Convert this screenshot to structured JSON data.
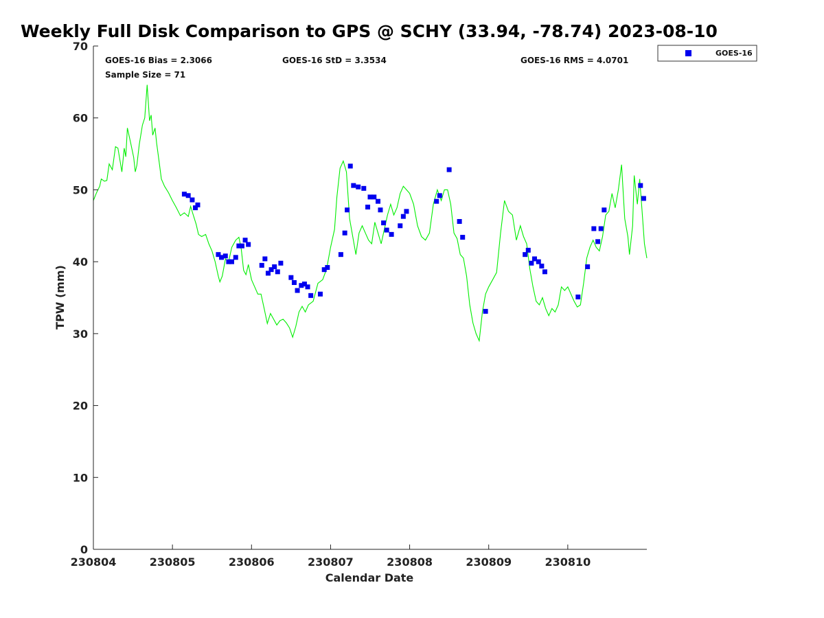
{
  "chart_data": {
    "type": "scatter",
    "title": "Weekly Full Disk Comparison to GPS @ SCHY (33.94, -78.74) 2023-08-10",
    "xlabel": "Calendar Date",
    "ylabel": "TPW (mm)",
    "xlim": [
      230804.0,
      230811.0
    ],
    "ylim": [
      0,
      70
    ],
    "x_ticks": [
      {
        "value": 230804,
        "label": "230804"
      },
      {
        "value": 230805,
        "label": "230805"
      },
      {
        "value": 230806,
        "label": "230806"
      },
      {
        "value": 230807,
        "label": "230807"
      },
      {
        "value": 230808,
        "label": "230808"
      },
      {
        "value": 230809,
        "label": "230809"
      },
      {
        "value": 230810,
        "label": "230810"
      }
    ],
    "y_ticks": [
      {
        "value": 0,
        "label": "0"
      },
      {
        "value": 10,
        "label": "10"
      },
      {
        "value": 20,
        "label": "20"
      },
      {
        "value": 30,
        "label": "30"
      },
      {
        "value": 40,
        "label": "40"
      },
      {
        "value": 50,
        "label": "50"
      },
      {
        "value": 60,
        "label": "60"
      },
      {
        "value": 70,
        "label": "70"
      }
    ],
    "grid": false,
    "legend_position": "outside-top-right",
    "stats": {
      "bias": "GOES-16 Bias = 2.3066",
      "std": "GOES-16 StD = 3.3534",
      "rms": "GOES-16 RMS = 4.0701",
      "sample": "Sample Size = 71"
    },
    "series": [
      {
        "name": "GOES-16",
        "kind": "scatter",
        "color": "#0000ee",
        "marker": "square",
        "points": [
          [
            230805.15,
            49.4
          ],
          [
            230805.2,
            49.2
          ],
          [
            230805.25,
            48.6
          ],
          [
            230805.29,
            47.5
          ],
          [
            230805.32,
            47.9
          ],
          [
            230805.58,
            41.0
          ],
          [
            230805.62,
            40.6
          ],
          [
            230805.67,
            40.8
          ],
          [
            230805.71,
            40.0
          ],
          [
            230805.75,
            40.0
          ],
          [
            230805.8,
            40.6
          ],
          [
            230805.84,
            42.2
          ],
          [
            230805.88,
            42.2
          ],
          [
            230805.92,
            43.0
          ],
          [
            230805.96,
            42.4
          ],
          [
            230806.13,
            39.5
          ],
          [
            230806.17,
            40.4
          ],
          [
            230806.21,
            38.4
          ],
          [
            230806.25,
            38.9
          ],
          [
            230806.29,
            39.3
          ],
          [
            230806.33,
            38.6
          ],
          [
            230806.37,
            39.8
          ],
          [
            230806.5,
            37.8
          ],
          [
            230806.54,
            37.1
          ],
          [
            230806.58,
            36.0
          ],
          [
            230806.63,
            36.7
          ],
          [
            230806.67,
            36.9
          ],
          [
            230806.71,
            36.5
          ],
          [
            230806.75,
            35.3
          ],
          [
            230806.87,
            35.5
          ],
          [
            230806.92,
            38.9
          ],
          [
            230806.96,
            39.2
          ],
          [
            230807.13,
            41.0
          ],
          [
            230807.18,
            44.0
          ],
          [
            230807.21,
            47.2
          ],
          [
            230807.25,
            53.3
          ],
          [
            230807.29,
            50.6
          ],
          [
            230807.35,
            50.4
          ],
          [
            230807.42,
            50.2
          ],
          [
            230807.47,
            47.6
          ],
          [
            230807.5,
            49.0
          ],
          [
            230807.55,
            49.0
          ],
          [
            230807.6,
            48.4
          ],
          [
            230807.63,
            47.2
          ],
          [
            230807.67,
            45.4
          ],
          [
            230807.71,
            44.4
          ],
          [
            230807.77,
            43.8
          ],
          [
            230807.88,
            45.0
          ],
          [
            230807.92,
            46.3
          ],
          [
            230807.96,
            47.0
          ],
          [
            230808.34,
            48.4
          ],
          [
            230808.38,
            49.2
          ],
          [
            230808.5,
            52.8
          ],
          [
            230808.63,
            45.6
          ],
          [
            230808.67,
            43.4
          ],
          [
            230808.96,
            33.1
          ],
          [
            230809.46,
            41.0
          ],
          [
            230809.5,
            41.6
          ],
          [
            230809.54,
            39.8
          ],
          [
            230809.58,
            40.4
          ],
          [
            230809.63,
            40.0
          ],
          [
            230809.67,
            39.4
          ],
          [
            230809.71,
            38.6
          ],
          [
            230810.13,
            35.1
          ],
          [
            230810.25,
            39.3
          ],
          [
            230810.33,
            44.6
          ],
          [
            230810.38,
            42.8
          ],
          [
            230810.42,
            44.6
          ],
          [
            230810.46,
            47.2
          ],
          [
            230810.92,
            50.6
          ],
          [
            230810.96,
            48.8
          ]
        ]
      },
      {
        "name": "",
        "kind": "line",
        "color": "#00ee00",
        "points": [
          [
            230804.0,
            48.5
          ],
          [
            230804.04,
            49.6
          ],
          [
            230804.08,
            50.5
          ],
          [
            230804.1,
            51.5
          ],
          [
            230804.14,
            51.2
          ],
          [
            230804.17,
            51.3
          ],
          [
            230804.2,
            53.6
          ],
          [
            230804.24,
            52.8
          ],
          [
            230804.28,
            56.0
          ],
          [
            230804.31,
            55.8
          ],
          [
            230804.33,
            54.5
          ],
          [
            230804.36,
            52.5
          ],
          [
            230804.39,
            55.8
          ],
          [
            230804.41,
            54.6
          ],
          [
            230804.43,
            58.6
          ],
          [
            230804.47,
            56.6
          ],
          [
            230804.51,
            54.5
          ],
          [
            230804.53,
            52.5
          ],
          [
            230804.55,
            53.4
          ],
          [
            230804.58,
            56.3
          ],
          [
            230804.62,
            59.0
          ],
          [
            230804.65,
            60.0
          ],
          [
            230804.68,
            64.6
          ],
          [
            230804.71,
            59.6
          ],
          [
            230804.73,
            60.4
          ],
          [
            230804.75,
            57.6
          ],
          [
            230804.78,
            58.6
          ],
          [
            230804.8,
            56.5
          ],
          [
            230804.83,
            54.0
          ],
          [
            230804.86,
            51.5
          ],
          [
            230804.9,
            50.5
          ],
          [
            230804.95,
            49.6
          ],
          [
            230805.0,
            48.5
          ],
          [
            230805.05,
            47.5
          ],
          [
            230805.1,
            46.4
          ],
          [
            230805.15,
            46.8
          ],
          [
            230805.2,
            46.3
          ],
          [
            230805.23,
            47.7
          ],
          [
            230805.26,
            46.6
          ],
          [
            230805.3,
            45.2
          ],
          [
            230805.33,
            43.8
          ],
          [
            230805.37,
            43.5
          ],
          [
            230805.42,
            43.8
          ],
          [
            230805.46,
            42.5
          ],
          [
            230805.5,
            41.5
          ],
          [
            230805.54,
            40.0
          ],
          [
            230805.58,
            38.0
          ],
          [
            230805.6,
            37.2
          ],
          [
            230805.63,
            38.0
          ],
          [
            230805.67,
            40.4
          ],
          [
            230805.71,
            40.0
          ],
          [
            230805.75,
            42.0
          ],
          [
            230805.8,
            43.0
          ],
          [
            230805.84,
            43.4
          ],
          [
            230805.87,
            41.8
          ],
          [
            230805.9,
            38.8
          ],
          [
            230805.93,
            38.2
          ],
          [
            230805.96,
            39.6
          ],
          [
            230806.0,
            37.5
          ],
          [
            230806.04,
            36.5
          ],
          [
            230806.08,
            35.5
          ],
          [
            230806.12,
            35.5
          ],
          [
            230806.16,
            33.5
          ],
          [
            230806.2,
            31.4
          ],
          [
            230806.24,
            32.8
          ],
          [
            230806.28,
            32.0
          ],
          [
            230806.32,
            31.2
          ],
          [
            230806.36,
            31.8
          ],
          [
            230806.4,
            32.0
          ],
          [
            230806.44,
            31.5
          ],
          [
            230806.48,
            30.8
          ],
          [
            230806.52,
            29.5
          ],
          [
            230806.56,
            31.0
          ],
          [
            230806.6,
            33.0
          ],
          [
            230806.64,
            33.8
          ],
          [
            230806.68,
            33.0
          ],
          [
            230806.72,
            34.0
          ],
          [
            230806.78,
            34.5
          ],
          [
            230806.84,
            37.0
          ],
          [
            230806.9,
            37.5
          ],
          [
            230806.95,
            39.0
          ],
          [
            230807.0,
            42.0
          ],
          [
            230807.05,
            44.5
          ],
          [
            230807.08,
            49.0
          ],
          [
            230807.12,
            53.0
          ],
          [
            230807.16,
            54.0
          ],
          [
            230807.2,
            52.5
          ],
          [
            230807.24,
            46.0
          ],
          [
            230807.28,
            43.5
          ],
          [
            230807.32,
            41.0
          ],
          [
            230807.36,
            44.0
          ],
          [
            230807.4,
            45.0
          ],
          [
            230807.44,
            44.0
          ],
          [
            230807.48,
            43.0
          ],
          [
            230807.52,
            42.5
          ],
          [
            230807.56,
            45.5
          ],
          [
            230807.6,
            44.0
          ],
          [
            230807.64,
            42.5
          ],
          [
            230807.68,
            44.5
          ],
          [
            230807.72,
            46.5
          ],
          [
            230807.76,
            48.0
          ],
          [
            230807.8,
            46.5
          ],
          [
            230807.84,
            47.5
          ],
          [
            230807.88,
            49.5
          ],
          [
            230807.92,
            50.5
          ],
          [
            230807.96,
            50.0
          ],
          [
            230808.0,
            49.5
          ],
          [
            230808.05,
            48.0
          ],
          [
            230808.1,
            45.0
          ],
          [
            230808.15,
            43.5
          ],
          [
            230808.2,
            43.0
          ],
          [
            230808.25,
            44.0
          ],
          [
            230808.3,
            48.0
          ],
          [
            230808.35,
            50.0
          ],
          [
            230808.4,
            48.5
          ],
          [
            230808.44,
            50.0
          ],
          [
            230808.48,
            50.0
          ],
          [
            230808.52,
            48.0
          ],
          [
            230808.56,
            44.0
          ],
          [
            230808.6,
            43.2
          ],
          [
            230808.64,
            41.0
          ],
          [
            230808.68,
            40.5
          ],
          [
            230808.72,
            38.0
          ],
          [
            230808.76,
            34.0
          ],
          [
            230808.8,
            31.5
          ],
          [
            230808.84,
            30.0
          ],
          [
            230808.88,
            29.0
          ],
          [
            230808.92,
            33.0
          ],
          [
            230808.96,
            35.5
          ],
          [
            230809.0,
            36.5
          ],
          [
            230809.05,
            37.5
          ],
          [
            230809.1,
            38.5
          ],
          [
            230809.15,
            44.0
          ],
          [
            230809.2,
            48.5
          ],
          [
            230809.25,
            47.0
          ],
          [
            230809.3,
            46.5
          ],
          [
            230809.35,
            43.0
          ],
          [
            230809.4,
            45.0
          ],
          [
            230809.44,
            43.5
          ],
          [
            230809.48,
            42.5
          ],
          [
            230809.52,
            39.0
          ],
          [
            230809.56,
            36.5
          ],
          [
            230809.6,
            34.5
          ],
          [
            230809.64,
            34.0
          ],
          [
            230809.68,
            35.0
          ],
          [
            230809.72,
            33.5
          ],
          [
            230809.76,
            32.5
          ],
          [
            230809.8,
            33.5
          ],
          [
            230809.84,
            33.0
          ],
          [
            230809.88,
            34.0
          ],
          [
            230809.92,
            36.5
          ],
          [
            230809.96,
            36.0
          ],
          [
            230810.0,
            36.5
          ],
          [
            230810.04,
            35.5
          ],
          [
            230810.08,
            34.5
          ],
          [
            230810.12,
            33.7
          ],
          [
            230810.16,
            34.0
          ],
          [
            230810.2,
            37.0
          ],
          [
            230810.24,
            40.5
          ],
          [
            230810.28,
            42.0
          ],
          [
            230810.32,
            43.0
          ],
          [
            230810.36,
            42.0
          ],
          [
            230810.4,
            41.5
          ],
          [
            230810.44,
            43.5
          ],
          [
            230810.48,
            46.5
          ],
          [
            230810.52,
            47.0
          ],
          [
            230810.56,
            49.5
          ],
          [
            230810.6,
            47.5
          ],
          [
            230810.64,
            50.0
          ],
          [
            230810.68,
            53.5
          ],
          [
            230810.72,
            46.0
          ],
          [
            230810.76,
            43.5
          ],
          [
            230810.78,
            41.0
          ],
          [
            230810.82,
            45.0
          ],
          [
            230810.84,
            52.0
          ],
          [
            230810.88,
            48.0
          ],
          [
            230810.91,
            51.5
          ],
          [
            230810.94,
            47.0
          ],
          [
            230810.97,
            42.5
          ],
          [
            230811.0,
            40.5
          ]
        ]
      }
    ]
  }
}
